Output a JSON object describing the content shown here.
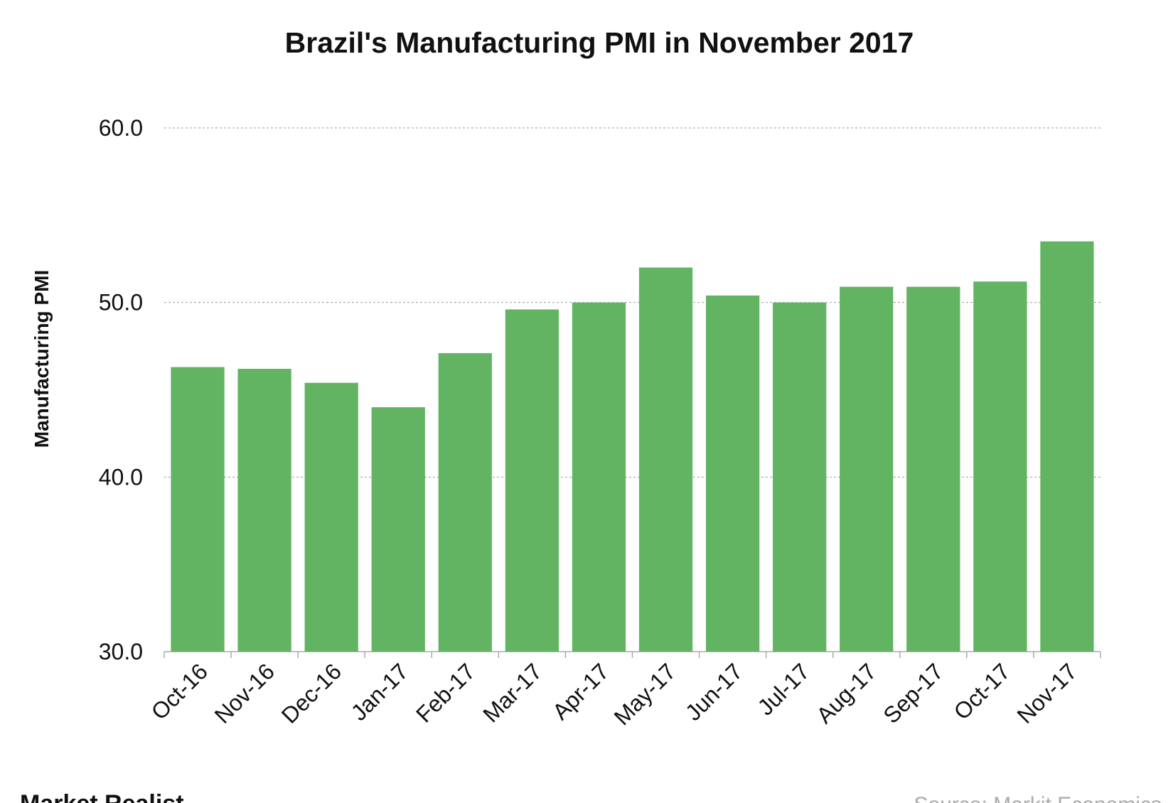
{
  "chart_data": {
    "type": "bar",
    "title": "Brazil's Manufacturing PMI in November 2017",
    "y_label": "Manufacturing PMI",
    "categories": [
      "Oct-16",
      "Nov-16",
      "Dec-16",
      "Jan-17",
      "Feb-17",
      "Mar-17",
      "Apr-17",
      "May-17",
      "Jun-17",
      "Jul-17",
      "Aug-17",
      "Sep-17",
      "Oct-17",
      "Nov-17"
    ],
    "values": [
      46.3,
      46.2,
      45.4,
      44.0,
      47.1,
      49.6,
      50.0,
      52.0,
      50.4,
      50.0,
      50.9,
      50.9,
      51.2,
      53.5
    ],
    "color": "#62b462",
    "ylim": [
      30,
      60
    ],
    "yticks": [
      {
        "value": 30,
        "label": "30.0"
      },
      {
        "value": 40,
        "label": "40.0"
      },
      {
        "value": 50,
        "label": "50.0"
      },
      {
        "value": 60,
        "label": "60.0"
      }
    ],
    "grid": true,
    "logo": "Market Realist",
    "source": "Source: Markit Economics"
  }
}
